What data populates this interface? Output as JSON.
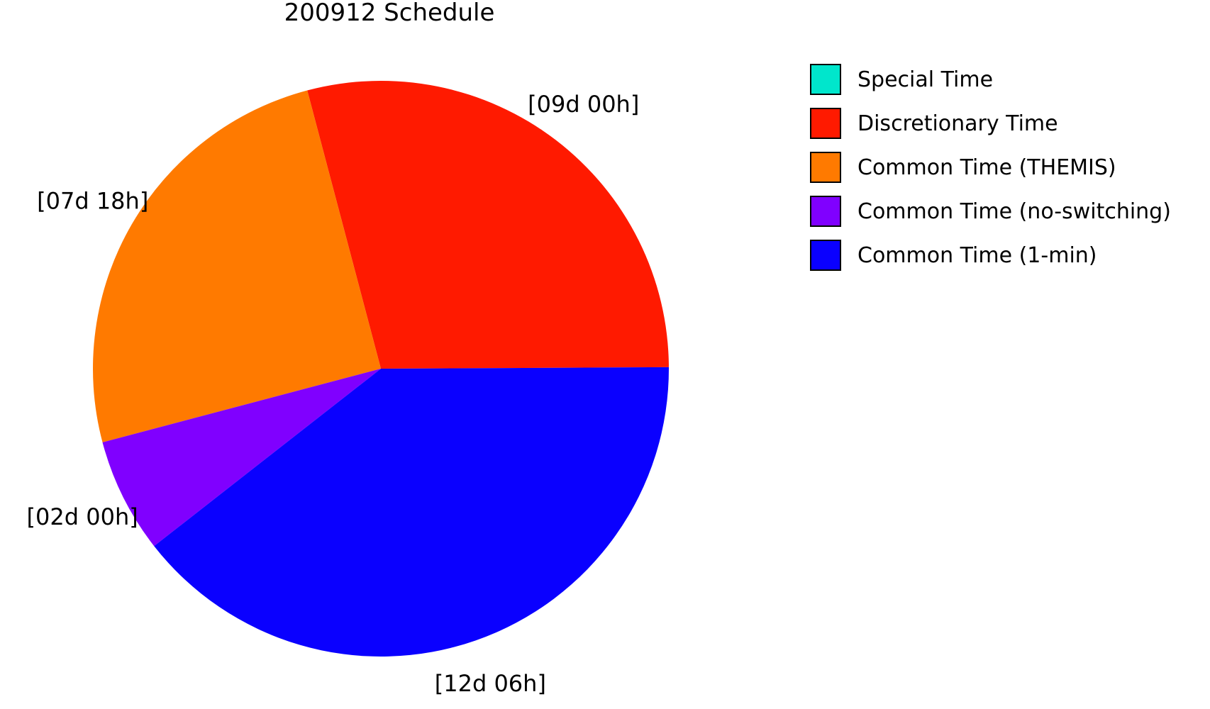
{
  "chart_data": {
    "type": "pie",
    "title": "200912 Schedule",
    "units": "hours",
    "slices": [
      {
        "name": "Special Time",
        "value": 0,
        "label": "",
        "color": "#00e6cc"
      },
      {
        "name": "Discretionary Time",
        "value": 216,
        "label": "[09d 00h]",
        "color": "#ff1a00"
      },
      {
        "name": "Common Time (THEMIS)",
        "value": 186,
        "label": "[07d 18h]",
        "color": "#ff7a00"
      },
      {
        "name": "Common Time (no-switching)",
        "value": 48,
        "label": "[02d 00h]",
        "color": "#8000ff"
      },
      {
        "name": "Common Time (1-min)",
        "value": 294,
        "label": "[12d 06h]",
        "color": "#0a00ff"
      }
    ],
    "legend": {
      "position": "right",
      "entries": [
        "Special Time",
        "Discretionary Time",
        "Common Time (THEMIS)",
        "Common Time (no-switching)",
        "Common Time (1-min)"
      ]
    }
  }
}
